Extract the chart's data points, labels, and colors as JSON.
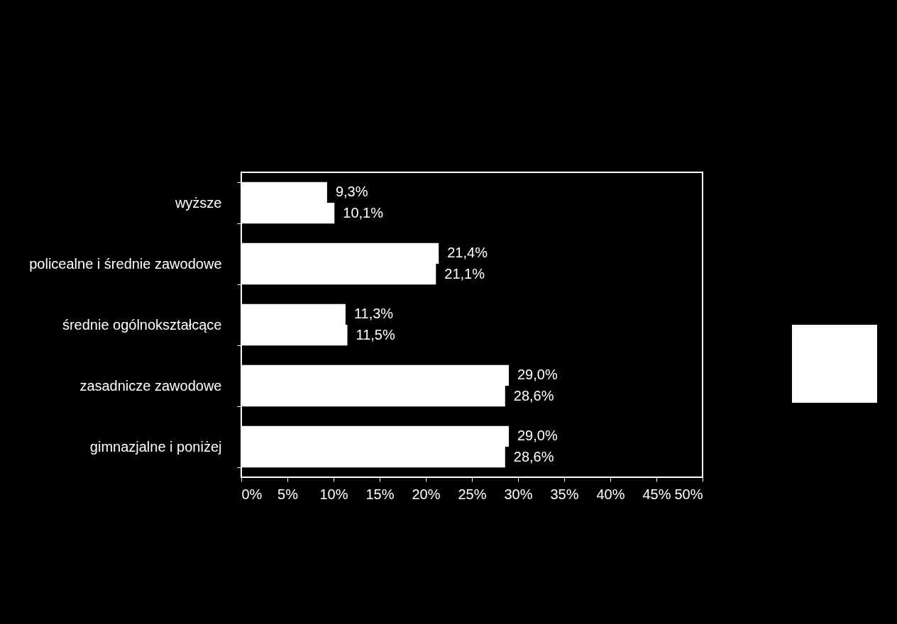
{
  "chart_data": {
    "type": "bar",
    "orientation": "horizontal",
    "categories": [
      "wyższe",
      "policealne i średnie zawodowe",
      "średnie ogólnokształcące",
      "zasadnicze zawodowe",
      "gimnazjalne i poniżej"
    ],
    "series": [
      {
        "color": "#ffffff",
        "values": [
          9.3,
          21.4,
          11.3,
          29.0,
          29.0
        ],
        "value_labels": [
          "9,3%",
          "21,4%",
          "11,3%",
          "29,0%",
          "29,0%"
        ]
      },
      {
        "color": "#ffffff",
        "values": [
          10.1,
          21.1,
          11.5,
          28.6,
          28.6
        ],
        "value_labels": [
          "10,1%",
          "21,1%",
          "11,5%",
          "28,6%",
          "28,6%"
        ]
      }
    ],
    "xlim": [
      0,
      50
    ],
    "xticks": [
      {
        "value": 0,
        "label": "0%"
      },
      {
        "value": 5,
        "label": "5%"
      },
      {
        "value": 10,
        "label": "10%"
      },
      {
        "value": 15,
        "label": "15%"
      },
      {
        "value": 20,
        "label": "20%"
      },
      {
        "value": 25,
        "label": "25%"
      },
      {
        "value": 30,
        "label": "30%"
      },
      {
        "value": 35,
        "label": "35%"
      },
      {
        "value": 40,
        "label": "40%"
      },
      {
        "value": 45,
        "label": "45%"
      },
      {
        "value": 50,
        "label": "50%"
      }
    ]
  }
}
